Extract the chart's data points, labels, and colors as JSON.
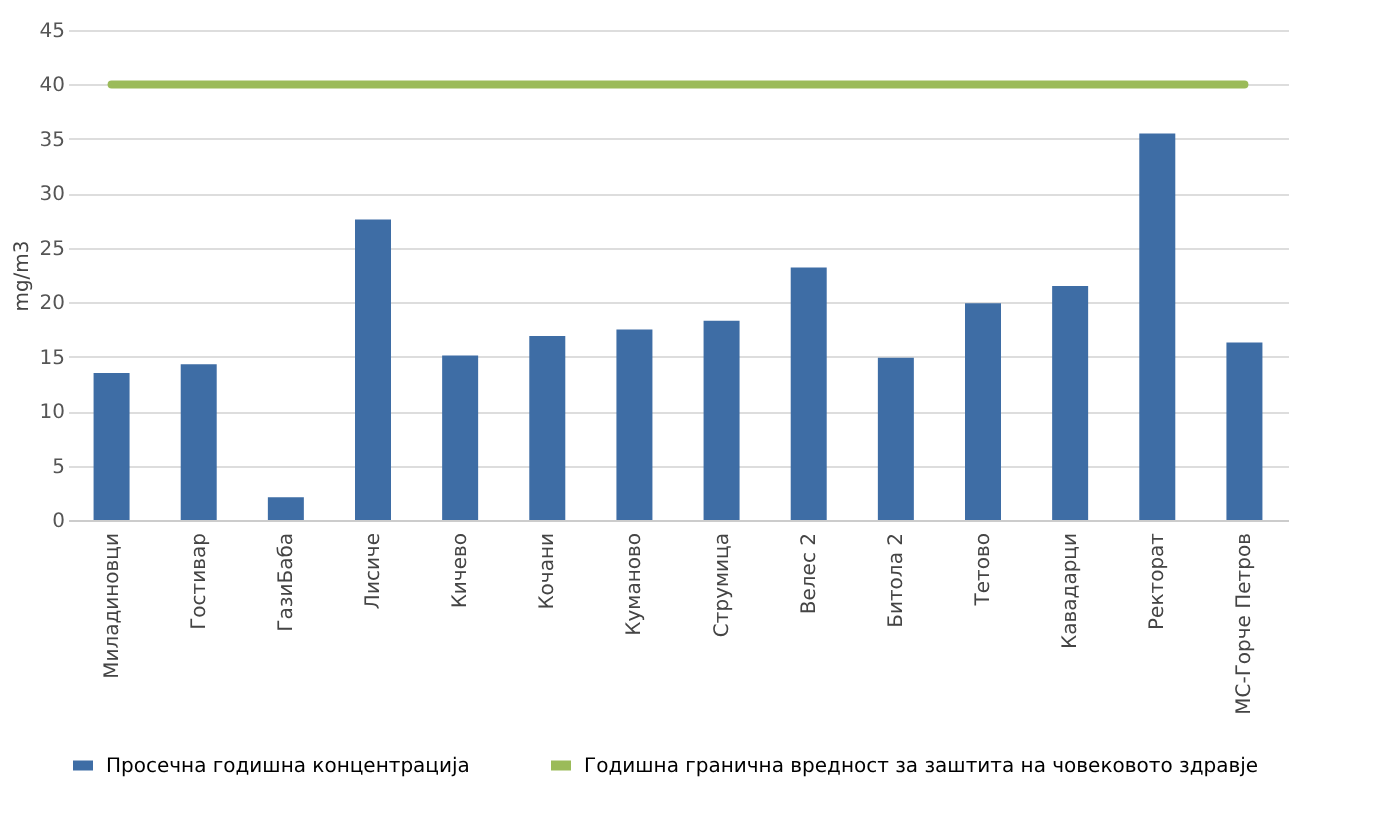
{
  "chart_data": {
    "type": "bar",
    "ylabel": "mg/m3",
    "categories": [
      "Миладиновци",
      "Гостивар",
      "ГазиБаба",
      "Лисиче",
      "Кичево",
      "Кочани",
      "Куманово",
      "Струмица",
      "Велес 2",
      "Битола 2",
      "Тетово",
      "Кавадарци",
      "Ректорат",
      "МС-Горче Петров"
    ],
    "series": [
      {
        "name": "Просечна годишна концентрација",
        "color": "#3e6da5",
        "values": [
          13.5,
          14.3,
          2.1,
          27.6,
          15.1,
          16.9,
          17.5,
          18.3,
          23.2,
          14.9,
          19.9,
          21.5,
          35.5,
          16.3
        ]
      },
      {
        "name": "Годишна гранична вредност за заштита на човековото здравје",
        "type": "line",
        "color": "#9bbb59",
        "values": [
          40,
          40,
          40,
          40,
          40,
          40,
          40,
          40,
          40,
          40,
          40,
          40,
          40,
          40
        ]
      }
    ],
    "ylim": [
      0,
      45
    ],
    "yticks": [
      0,
      5,
      10,
      15,
      20,
      25,
      30,
      35,
      40,
      45
    ],
    "grid": "y",
    "legend": "bottom"
  }
}
